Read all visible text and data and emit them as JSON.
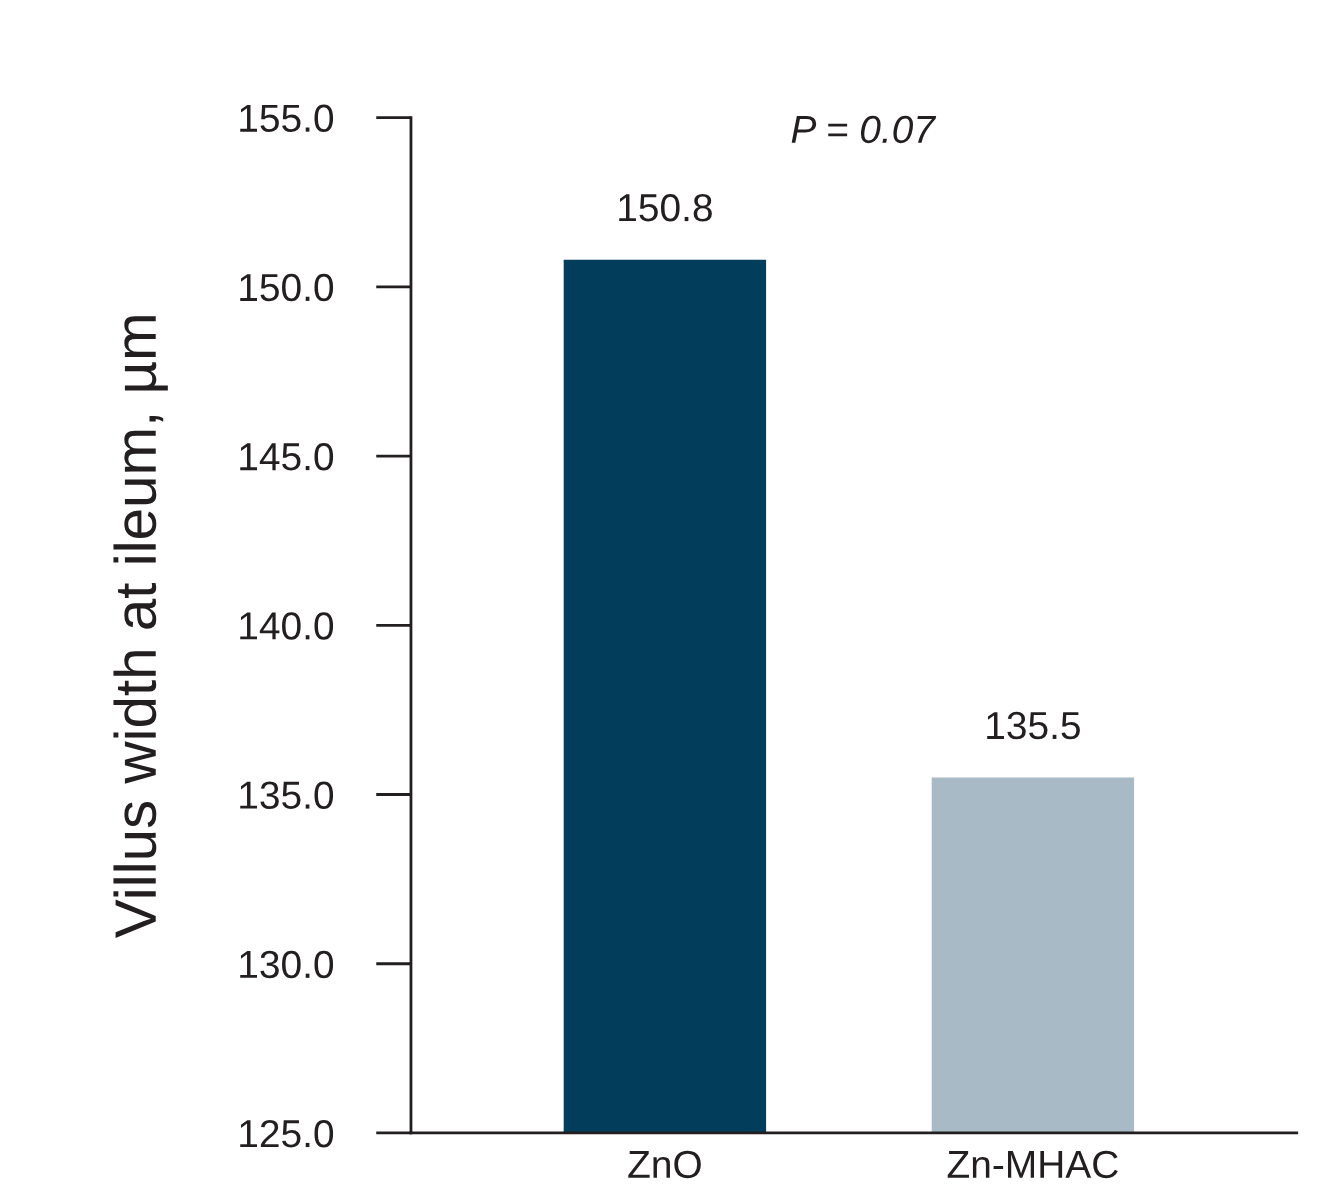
{
  "chart_data": {
    "type": "bar",
    "ylabel": "Villus width at ileum, µm",
    "categories": [
      "ZnO",
      "Zn-MHAC"
    ],
    "series": [
      {
        "colors": [
          "#023d5c",
          "#a8bac5"
        ],
        "values": [
          150.8,
          135.5
        ]
      }
    ],
    "ylim": [
      125,
      155
    ],
    "yticks": [
      {
        "value": 125,
        "label": "125.0"
      },
      {
        "value": 130,
        "label": "130.0"
      },
      {
        "value": 135,
        "label": "135.0"
      },
      {
        "value": 140,
        "label": "140.0"
      },
      {
        "value": 145,
        "label": "145.0"
      },
      {
        "value": 150,
        "label": "150.0"
      },
      {
        "value": 155,
        "label": "155.0"
      }
    ],
    "data_labels": true,
    "grid": false,
    "legend": false,
    "annotations": [
      "P = 0.07"
    ]
  }
}
